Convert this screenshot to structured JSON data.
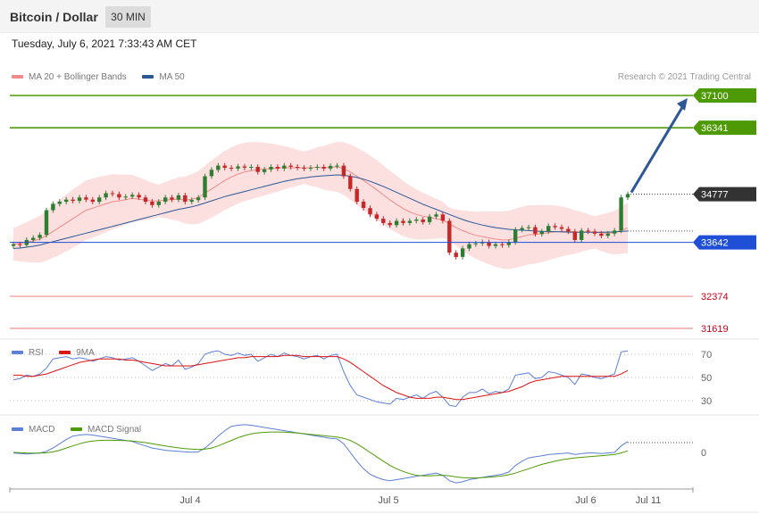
{
  "header": {
    "title": "Bitcoin / Dollar",
    "timeframe": "30 MIN"
  },
  "timestamp": "Tuesday, July 6, 2021 7:33:43 AM CET",
  "legend_main": [
    {
      "label": "MA 20 + Bollinger Bands",
      "color": "#f08a8a"
    },
    {
      "label": "MA 50",
      "color": "#2b5797"
    }
  ],
  "credit": "Research © 2021 Trading Central",
  "legend_rsi": [
    {
      "label": "RSI",
      "color": "#5b7fd6"
    },
    {
      "label": "9MA",
      "color": "#dd1111"
    }
  ],
  "legend_macd": [
    {
      "label": "MACD",
      "color": "#5b7fd6"
    },
    {
      "label": "MACD Signal",
      "color": "#4e9a06"
    }
  ],
  "colors": {
    "resistance": "#4e9a06",
    "pivot": "#1f4fd6",
    "support": "#f4a3a3",
    "support_text": "#d0021b",
    "up": "#2e7d32",
    "down": "#c62828",
    "band": "#fbd6d6",
    "ma20": "#f08a8a",
    "ma50": "#2b5797",
    "arrow": "#2b5797"
  },
  "chart_data": [
    {
      "type": "candlestick",
      "title": "Bitcoin / Dollar",
      "timeframe": "30 MIN",
      "x_ticks": [
        "Jul 4",
        "Jul 5",
        "Jul 6",
        "Jul 11"
      ],
      "y_range": [
        31500,
        37300
      ],
      "last_price": 34777,
      "levels": [
        {
          "label": "37100",
          "value": 37100,
          "kind": "resistance"
        },
        {
          "label": "36341",
          "value": 36341,
          "kind": "resistance"
        },
        {
          "label": "34777",
          "value": 34777,
          "kind": "last"
        },
        {
          "label": "33642",
          "value": 33642,
          "kind": "pivot"
        },
        {
          "label": "32374",
          "value": 32374,
          "kind": "support"
        },
        {
          "label": "31619",
          "value": 31619,
          "kind": "support"
        }
      ],
      "forecast_arrow": {
        "from": 34777,
        "to": 37100
      },
      "close_series": [
        33600,
        33580,
        33700,
        33750,
        33820,
        34400,
        34550,
        34600,
        34650,
        34620,
        34700,
        34650,
        34600,
        34700,
        34800,
        34780,
        34700,
        34720,
        34760,
        34700,
        34600,
        34520,
        34600,
        34700,
        34650,
        34750,
        34600,
        34640,
        34700,
        35200,
        35350,
        35450,
        35400,
        35380,
        35430,
        35400,
        35420,
        35300,
        35360,
        35420,
        35380,
        35450,
        35420,
        35400,
        35380,
        35400,
        35420,
        35380,
        35440,
        35450,
        35200,
        34900,
        34600,
        34450,
        34300,
        34200,
        34100,
        34050,
        34150,
        34100,
        34150,
        34180,
        34120,
        34250,
        34300,
        34150,
        33400,
        33300,
        33500,
        33600,
        33620,
        33650,
        33560,
        33600,
        33580,
        33650,
        33940,
        33980,
        34000,
        33840,
        33900,
        34030,
        34000,
        33960,
        33900,
        33700,
        33920,
        33900,
        33850,
        33800,
        33850,
        33920,
        34700,
        34777
      ],
      "ma20": [
        33600,
        33620,
        33650,
        33680,
        33720,
        33800,
        33900,
        34000,
        34100,
        34200,
        34300,
        34400,
        34450,
        34500,
        34550,
        34600,
        34620,
        34650,
        34680,
        34660,
        34640,
        34620,
        34620,
        34640,
        34650,
        34660,
        34640,
        34660,
        34700,
        34800,
        34900,
        35000,
        35100,
        35180,
        35250,
        35300,
        35330,
        35350,
        35370,
        35380,
        35390,
        35400,
        35400,
        35400,
        35400,
        35400,
        35410,
        35400,
        35410,
        35420,
        35380,
        35300,
        35200,
        35100,
        34990,
        34880,
        34760,
        34640,
        34540,
        34440,
        34360,
        34300,
        34260,
        34230,
        34200,
        34170,
        34080,
        33990,
        33920,
        33860,
        33810,
        33780,
        33750,
        33720,
        33700,
        33700,
        33740,
        33780,
        33820,
        33830,
        33850,
        33870,
        33890,
        33900,
        33900,
        33890,
        33890,
        33890,
        33880,
        33870,
        33860,
        33870,
        33930,
        33980
      ],
      "ma50": [
        33500,
        33510,
        33530,
        33550,
        33580,
        33620,
        33660,
        33700,
        33740,
        33780,
        33820,
        33860,
        33900,
        33940,
        33980,
        34020,
        34060,
        34100,
        34140,
        34180,
        34220,
        34260,
        34300,
        34340,
        34380,
        34420,
        34450,
        34480,
        34520,
        34570,
        34620,
        34670,
        34720,
        34760,
        34800,
        34840,
        34880,
        34920,
        34960,
        35000,
        35040,
        35080,
        35110,
        35140,
        35160,
        35180,
        35200,
        35210,
        35220,
        35230,
        35220,
        35200,
        35170,
        35130,
        35080,
        35020,
        34960,
        34890,
        34820,
        34750,
        34680,
        34610,
        34540,
        34480,
        34420,
        34360,
        34300,
        34240,
        34180,
        34130,
        34090,
        34050,
        34020,
        33990,
        33970,
        33950,
        33940,
        33930,
        33920,
        33910,
        33900,
        33900,
        33895,
        33890,
        33885,
        33880,
        33880,
        33880,
        33880,
        33880,
        33885,
        33890,
        33900,
        33910
      ]
    },
    {
      "type": "line",
      "name": "RSI",
      "ticks": [
        70,
        50,
        30
      ],
      "ylim": [
        20,
        80
      ],
      "series": [
        {
          "name": "RSI",
          "values": [
            48,
            49,
            52,
            51,
            53,
            58,
            66,
            67,
            68,
            66,
            67,
            66,
            64,
            66,
            68,
            67,
            65,
            66,
            67,
            64,
            60,
            56,
            59,
            62,
            60,
            65,
            57,
            59,
            62,
            70,
            72,
            73,
            70,
            69,
            71,
            69,
            70,
            64,
            67,
            70,
            68,
            71,
            69,
            68,
            66,
            68,
            69,
            66,
            69,
            70,
            55,
            43,
            35,
            33,
            31,
            29,
            28,
            27,
            32,
            31,
            33,
            35,
            32,
            36,
            38,
            33,
            26,
            25,
            33,
            37,
            37,
            40,
            36,
            38,
            37,
            40,
            52,
            53,
            54,
            49,
            50,
            55,
            54,
            52,
            50,
            44,
            53,
            52,
            50,
            49,
            51,
            53,
            72,
            73
          ]
        },
        {
          "name": "9MA",
          "values": [
            52,
            52,
            51,
            51,
            52,
            53,
            55,
            57,
            59,
            61,
            63,
            64,
            65,
            66,
            66,
            66,
            66,
            65,
            65,
            64,
            63,
            62,
            61,
            60,
            60,
            60,
            60,
            60,
            61,
            62,
            63,
            64,
            65,
            66,
            67,
            67,
            68,
            68,
            68,
            68,
            68,
            69,
            69,
            69,
            68,
            68,
            68,
            68,
            68,
            68,
            66,
            63,
            59,
            55,
            51,
            47,
            43,
            40,
            37,
            35,
            33,
            32,
            32,
            32,
            33,
            33,
            32,
            31,
            31,
            32,
            33,
            34,
            35,
            36,
            37,
            38,
            40,
            42,
            45,
            47,
            48,
            49,
            50,
            51,
            51,
            51,
            51,
            51,
            51,
            51,
            51,
            51,
            53,
            56
          ]
        }
      ]
    },
    {
      "type": "line",
      "name": "MACD",
      "ticks": [
        0
      ],
      "ylim": [
        -320,
        320
      ],
      "series": [
        {
          "name": "MACD",
          "values": [
            -5,
            -10,
            -15,
            -10,
            -5,
            10,
            40,
            80,
            120,
            150,
            160,
            165,
            160,
            150,
            140,
            130,
            120,
            110,
            100,
            80,
            60,
            40,
            30,
            20,
            15,
            10,
            5,
            2,
            5,
            40,
            90,
            150,
            200,
            240,
            250,
            255,
            250,
            240,
            230,
            220,
            210,
            200,
            190,
            180,
            170,
            160,
            150,
            140,
            130,
            125,
            80,
            0,
            -80,
            -150,
            -200,
            -230,
            -250,
            -260,
            -250,
            -240,
            -230,
            -220,
            -210,
            -200,
            -190,
            -210,
            -260,
            -280,
            -270,
            -250,
            -240,
            -230,
            -220,
            -210,
            -200,
            -180,
            -120,
            -80,
            -50,
            -40,
            -30,
            -20,
            -15,
            -10,
            -5,
            -20,
            -10,
            -5,
            -5,
            -10,
            -5,
            0,
            60,
            100
          ]
        },
        {
          "name": "MACD Signal",
          "values": [
            0,
            -2,
            -5,
            -6,
            -6,
            -3,
            5,
            20,
            40,
            60,
            80,
            95,
            105,
            110,
            112,
            112,
            110,
            108,
            104,
            98,
            90,
            80,
            70,
            60,
            50,
            42,
            35,
            30,
            27,
            30,
            40,
            60,
            85,
            110,
            135,
            155,
            170,
            180,
            185,
            188,
            188,
            186,
            182,
            178,
            172,
            166,
            160,
            154,
            148,
            142,
            130,
            110,
            80,
            40,
            0,
            -40,
            -80,
            -120,
            -150,
            -175,
            -195,
            -210,
            -215,
            -215,
            -212,
            -210,
            -215,
            -225,
            -232,
            -235,
            -235,
            -232,
            -228,
            -222,
            -215,
            -205,
            -190,
            -170,
            -150,
            -130,
            -110,
            -95,
            -80,
            -68,
            -58,
            -50,
            -45,
            -40,
            -35,
            -30,
            -25,
            -20,
            -5,
            15
          ]
        }
      ]
    }
  ]
}
